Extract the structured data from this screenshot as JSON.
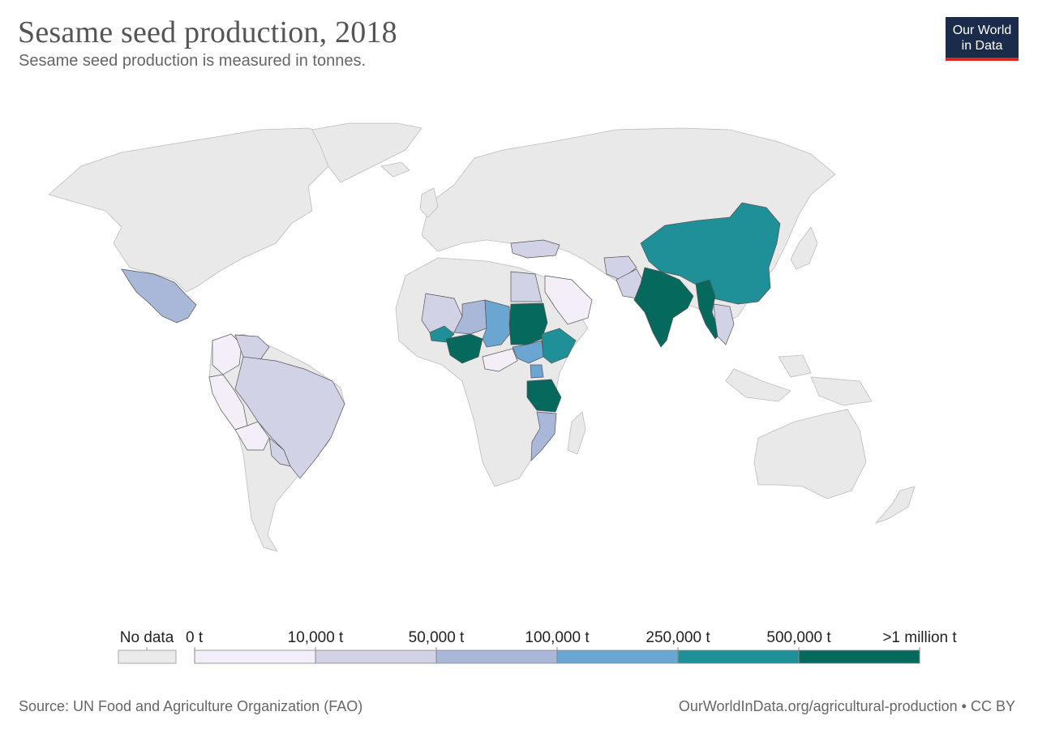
{
  "header": {
    "title": "Sesame seed production, 2018",
    "subtitle": "Sesame seed production is measured in tonnes."
  },
  "logo": {
    "line1": "Our World",
    "line2": "in Data",
    "bg": "#1a2b4c",
    "accent": "#dc2626"
  },
  "legend": {
    "no_data_label": "No data",
    "no_data_color": "#ebebeb",
    "bins": [
      {
        "label": "0 t",
        "color": "#f3eef7"
      },
      {
        "label": "10,000 t",
        "color": "#d2d2e6"
      },
      {
        "label": "50,000 t",
        "color": "#a9b7d9"
      },
      {
        "label": "100,000 t",
        "color": "#6aa6d1"
      },
      {
        "label": "250,000 t",
        "color": "#1f8f98"
      },
      {
        "label": "500,000 t",
        "color": "#05695d"
      }
    ],
    "end_label": ">1 million t"
  },
  "map_data": {
    "countries": [
      {
        "name": "Sudan",
        "bin": ">1 million t"
      },
      {
        "name": "India",
        "bin": "500,000 t"
      },
      {
        "name": "Myanmar",
        "bin": "500,000 t"
      },
      {
        "name": "Nigeria",
        "bin": "500,000 t"
      },
      {
        "name": "Tanzania",
        "bin": "500,000 t"
      },
      {
        "name": "China",
        "bin": "250,000 t"
      },
      {
        "name": "Ethiopia",
        "bin": "250,000 t"
      },
      {
        "name": "Burkina Faso",
        "bin": "250,000 t"
      },
      {
        "name": "Chad",
        "bin": "100,000 t"
      },
      {
        "name": "South Sudan",
        "bin": "100,000 t"
      },
      {
        "name": "Uganda",
        "bin": "100,000 t"
      },
      {
        "name": "Mexico",
        "bin": "50,000 t"
      },
      {
        "name": "Mali",
        "bin": "50,000 t"
      },
      {
        "name": "Mozambique",
        "bin": "50,000 t"
      },
      {
        "name": "Brazil",
        "bin": "10,000 t"
      },
      {
        "name": "Paraguay",
        "bin": "10,000 t"
      },
      {
        "name": "Venezuela",
        "bin": "10,000 t"
      },
      {
        "name": "Niger",
        "bin": "10,000 t"
      },
      {
        "name": "Egypt",
        "bin": "10,000 t"
      },
      {
        "name": "Turkey",
        "bin": "10,000 t"
      },
      {
        "name": "Afghanistan",
        "bin": "10,000 t"
      },
      {
        "name": "Pakistan",
        "bin": "10,000 t"
      },
      {
        "name": "Thailand",
        "bin": "10,000 t"
      },
      {
        "name": "Bolivia",
        "bin": "0 t"
      },
      {
        "name": "Colombia",
        "bin": "0 t"
      },
      {
        "name": "Saudi Arabia",
        "bin": "0 t"
      },
      {
        "name": "Central African Republic",
        "bin": "0 t"
      }
    ]
  },
  "footer": {
    "source": "Source: UN Food and Agriculture Organization (FAO)",
    "link": "OurWorldInData.org/agricultural-production • CC BY"
  }
}
